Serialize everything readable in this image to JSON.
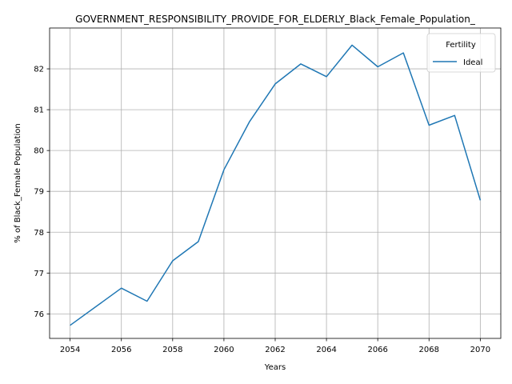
{
  "chart_data": {
    "type": "line",
    "title": "GOVERNMENT_RESPONSIBILITY_PROVIDE_FOR_ELDERLY_Black_Female_Population_",
    "xlabel": "Years",
    "ylabel": "% of Black_Female Population",
    "x": [
      2054,
      2056,
      2057,
      2058,
      2059,
      2060,
      2061,
      2062,
      2063,
      2064,
      2065,
      2066,
      2067,
      2068,
      2069,
      2070
    ],
    "series": [
      {
        "name": "Ideal",
        "color": "#1f77b4",
        "values": [
          75.72,
          76.63,
          76.31,
          77.3,
          77.77,
          79.53,
          80.71,
          81.63,
          82.12,
          81.81,
          82.58,
          82.05,
          82.39,
          80.62,
          80.86,
          78.78
        ]
      }
    ],
    "xlim": [
      2053.2,
      2070.8
    ],
    "ylim": [
      75.4,
      83.0
    ],
    "xticks": [
      "2054",
      "2056",
      "2058",
      "2060",
      "2062",
      "2064",
      "2066",
      "2068",
      "2070"
    ],
    "yticks": [
      "76",
      "77",
      "78",
      "79",
      "80",
      "81",
      "82"
    ],
    "grid": true,
    "legend": {
      "title": "Fertility",
      "placement": "top-right"
    }
  }
}
